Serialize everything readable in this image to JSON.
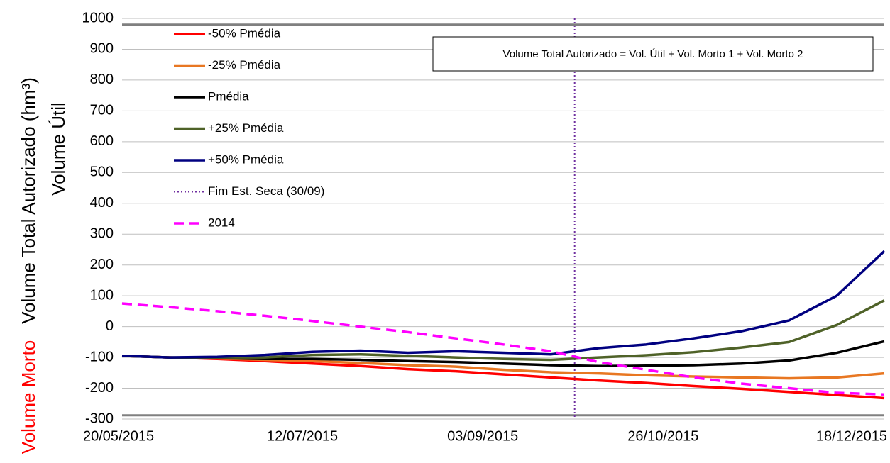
{
  "chart_data": {
    "type": "line",
    "y_label": "Volume Total Autorizado (hm³)",
    "y_label_upper": "Volume Útil",
    "y_label_lower": "Volume Morto",
    "y_label_lower_color": "#ff0000",
    "annotation": "Volume Total Autorizado = Vol. Útil + Vol. Morto 1 + Vol. Morto 2",
    "x": [
      "20/05/2015",
      "03/06/2015",
      "17/06/2015",
      "01/07/2015",
      "15/07/2015",
      "29/07/2015",
      "12/08/2015",
      "26/08/2015",
      "09/09/2015",
      "23/09/2015",
      "07/10/2015",
      "21/10/2015",
      "04/11/2015",
      "18/11/2015",
      "02/12/2015",
      "16/12/2015",
      "30/12/2015"
    ],
    "xlim": [
      "20/05/2015",
      "30/12/2015"
    ],
    "xticks": [
      "20/05/2015",
      "12/07/2015",
      "03/09/2015",
      "26/10/2015",
      "18/12/2015"
    ],
    "ylim": [
      -300,
      1000
    ],
    "yticks": [
      -300,
      -200,
      -100,
      0,
      100,
      200,
      300,
      400,
      500,
      600,
      700,
      800,
      900,
      1000
    ],
    "grid": true,
    "legend": "upper left",
    "hlines": [
      980,
      -288
    ],
    "hline_color": "#808080",
    "vline": {
      "name": "Fim Est. Seca (30/09)",
      "x": "30/09/2015",
      "color": "#7030a0"
    },
    "series": [
      {
        "name": "-50% Pmédia",
        "color": "#ff0000",
        "style": "solid",
        "values": [
          -95,
          -100,
          -105,
          -112,
          -120,
          -128,
          -138,
          -145,
          -155,
          -165,
          -175,
          -183,
          -193,
          -202,
          -212,
          -222,
          -232
        ]
      },
      {
        "name": "-25% Pmédia",
        "color": "#e87722",
        "style": "solid",
        "values": [
          -95,
          -100,
          -103,
          -108,
          -112,
          -118,
          -125,
          -130,
          -140,
          -148,
          -152,
          -158,
          -162,
          -165,
          -168,
          -165,
          -152
        ]
      },
      {
        "name": "Pmédia",
        "color": "#000000",
        "style": "solid",
        "values": [
          -95,
          -100,
          -102,
          -105,
          -105,
          -108,
          -112,
          -115,
          -120,
          -125,
          -128,
          -127,
          -125,
          -120,
          -110,
          -85,
          -48
        ]
      },
      {
        "name": "+25% Pmédia",
        "color": "#4f6228",
        "style": "solid",
        "values": [
          -95,
          -100,
          -100,
          -100,
          -92,
          -90,
          -95,
          -100,
          -105,
          -108,
          -100,
          -93,
          -83,
          -68,
          -50,
          5,
          85
        ]
      },
      {
        "name": "+50% Pmédia",
        "color": "#000080",
        "style": "solid",
        "values": [
          -95,
          -100,
          -98,
          -92,
          -82,
          -78,
          -85,
          -80,
          -85,
          -90,
          -70,
          -58,
          -38,
          -15,
          20,
          100,
          245
        ]
      },
      {
        "name": "2014",
        "color": "#ff00ff",
        "style": "dashed",
        "values": [
          75,
          63,
          50,
          35,
          18,
          0,
          -18,
          -38,
          -58,
          -80,
          -115,
          -140,
          -165,
          -185,
          -200,
          -215,
          -220
        ]
      }
    ]
  }
}
